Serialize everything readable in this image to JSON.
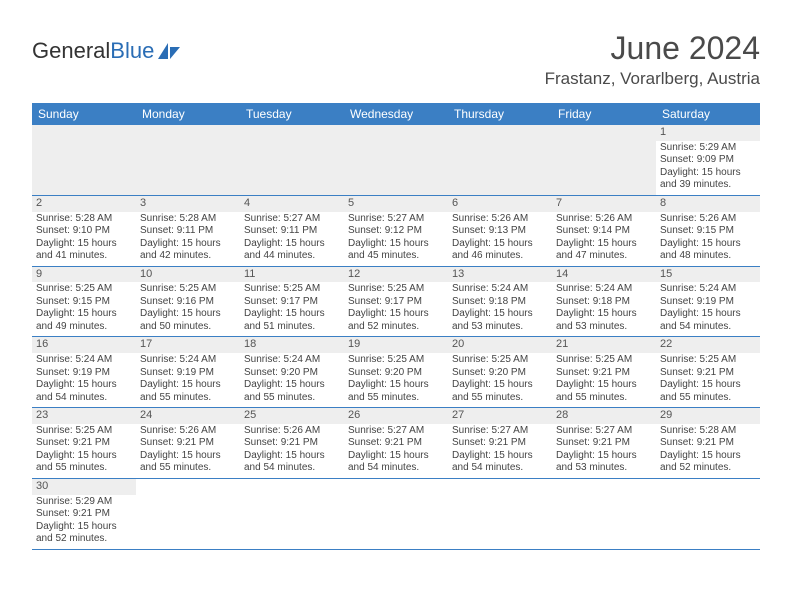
{
  "logo": {
    "word1": "General",
    "word2": "Blue"
  },
  "title": "June 2024",
  "location": "Frastanz, Vorarlberg, Austria",
  "colors": {
    "header_bg": "#3b7fc4",
    "header_text": "#ffffff",
    "border": "#3b7fc4",
    "shade": "#eeeeee",
    "text": "#444444"
  },
  "weekdays": [
    "Sunday",
    "Monday",
    "Tuesday",
    "Wednesday",
    "Thursday",
    "Friday",
    "Saturday"
  ],
  "days": {
    "1": {
      "sunrise": "Sunrise: 5:29 AM",
      "sunset": "Sunset: 9:09 PM",
      "day1": "Daylight: 15 hours",
      "day2": "and 39 minutes."
    },
    "2": {
      "sunrise": "Sunrise: 5:28 AM",
      "sunset": "Sunset: 9:10 PM",
      "day1": "Daylight: 15 hours",
      "day2": "and 41 minutes."
    },
    "3": {
      "sunrise": "Sunrise: 5:28 AM",
      "sunset": "Sunset: 9:11 PM",
      "day1": "Daylight: 15 hours",
      "day2": "and 42 minutes."
    },
    "4": {
      "sunrise": "Sunrise: 5:27 AM",
      "sunset": "Sunset: 9:11 PM",
      "day1": "Daylight: 15 hours",
      "day2": "and 44 minutes."
    },
    "5": {
      "sunrise": "Sunrise: 5:27 AM",
      "sunset": "Sunset: 9:12 PM",
      "day1": "Daylight: 15 hours",
      "day2": "and 45 minutes."
    },
    "6": {
      "sunrise": "Sunrise: 5:26 AM",
      "sunset": "Sunset: 9:13 PM",
      "day1": "Daylight: 15 hours",
      "day2": "and 46 minutes."
    },
    "7": {
      "sunrise": "Sunrise: 5:26 AM",
      "sunset": "Sunset: 9:14 PM",
      "day1": "Daylight: 15 hours",
      "day2": "and 47 minutes."
    },
    "8": {
      "sunrise": "Sunrise: 5:26 AM",
      "sunset": "Sunset: 9:15 PM",
      "day1": "Daylight: 15 hours",
      "day2": "and 48 minutes."
    },
    "9": {
      "sunrise": "Sunrise: 5:25 AM",
      "sunset": "Sunset: 9:15 PM",
      "day1": "Daylight: 15 hours",
      "day2": "and 49 minutes."
    },
    "10": {
      "sunrise": "Sunrise: 5:25 AM",
      "sunset": "Sunset: 9:16 PM",
      "day1": "Daylight: 15 hours",
      "day2": "and 50 minutes."
    },
    "11": {
      "sunrise": "Sunrise: 5:25 AM",
      "sunset": "Sunset: 9:17 PM",
      "day1": "Daylight: 15 hours",
      "day2": "and 51 minutes."
    },
    "12": {
      "sunrise": "Sunrise: 5:25 AM",
      "sunset": "Sunset: 9:17 PM",
      "day1": "Daylight: 15 hours",
      "day2": "and 52 minutes."
    },
    "13": {
      "sunrise": "Sunrise: 5:24 AM",
      "sunset": "Sunset: 9:18 PM",
      "day1": "Daylight: 15 hours",
      "day2": "and 53 minutes."
    },
    "14": {
      "sunrise": "Sunrise: 5:24 AM",
      "sunset": "Sunset: 9:18 PM",
      "day1": "Daylight: 15 hours",
      "day2": "and 53 minutes."
    },
    "15": {
      "sunrise": "Sunrise: 5:24 AM",
      "sunset": "Sunset: 9:19 PM",
      "day1": "Daylight: 15 hours",
      "day2": "and 54 minutes."
    },
    "16": {
      "sunrise": "Sunrise: 5:24 AM",
      "sunset": "Sunset: 9:19 PM",
      "day1": "Daylight: 15 hours",
      "day2": "and 54 minutes."
    },
    "17": {
      "sunrise": "Sunrise: 5:24 AM",
      "sunset": "Sunset: 9:19 PM",
      "day1": "Daylight: 15 hours",
      "day2": "and 55 minutes."
    },
    "18": {
      "sunrise": "Sunrise: 5:24 AM",
      "sunset": "Sunset: 9:20 PM",
      "day1": "Daylight: 15 hours",
      "day2": "and 55 minutes."
    },
    "19": {
      "sunrise": "Sunrise: 5:25 AM",
      "sunset": "Sunset: 9:20 PM",
      "day1": "Daylight: 15 hours",
      "day2": "and 55 minutes."
    },
    "20": {
      "sunrise": "Sunrise: 5:25 AM",
      "sunset": "Sunset: 9:20 PM",
      "day1": "Daylight: 15 hours",
      "day2": "and 55 minutes."
    },
    "21": {
      "sunrise": "Sunrise: 5:25 AM",
      "sunset": "Sunset: 9:21 PM",
      "day1": "Daylight: 15 hours",
      "day2": "and 55 minutes."
    },
    "22": {
      "sunrise": "Sunrise: 5:25 AM",
      "sunset": "Sunset: 9:21 PM",
      "day1": "Daylight: 15 hours",
      "day2": "and 55 minutes."
    },
    "23": {
      "sunrise": "Sunrise: 5:25 AM",
      "sunset": "Sunset: 9:21 PM",
      "day1": "Daylight: 15 hours",
      "day2": "and 55 minutes."
    },
    "24": {
      "sunrise": "Sunrise: 5:26 AM",
      "sunset": "Sunset: 9:21 PM",
      "day1": "Daylight: 15 hours",
      "day2": "and 55 minutes."
    },
    "25": {
      "sunrise": "Sunrise: 5:26 AM",
      "sunset": "Sunset: 9:21 PM",
      "day1": "Daylight: 15 hours",
      "day2": "and 54 minutes."
    },
    "26": {
      "sunrise": "Sunrise: 5:27 AM",
      "sunset": "Sunset: 9:21 PM",
      "day1": "Daylight: 15 hours",
      "day2": "and 54 minutes."
    },
    "27": {
      "sunrise": "Sunrise: 5:27 AM",
      "sunset": "Sunset: 9:21 PM",
      "day1": "Daylight: 15 hours",
      "day2": "and 54 minutes."
    },
    "28": {
      "sunrise": "Sunrise: 5:27 AM",
      "sunset": "Sunset: 9:21 PM",
      "day1": "Daylight: 15 hours",
      "day2": "and 53 minutes."
    },
    "29": {
      "sunrise": "Sunrise: 5:28 AM",
      "sunset": "Sunset: 9:21 PM",
      "day1": "Daylight: 15 hours",
      "day2": "and 52 minutes."
    },
    "30": {
      "sunrise": "Sunrise: 5:29 AM",
      "sunset": "Sunset: 9:21 PM",
      "day1": "Daylight: 15 hours",
      "day2": "and 52 minutes."
    }
  },
  "grid": [
    [
      null,
      null,
      null,
      null,
      null,
      null,
      "1"
    ],
    [
      "2",
      "3",
      "4",
      "5",
      "6",
      "7",
      "8"
    ],
    [
      "9",
      "10",
      "11",
      "12",
      "13",
      "14",
      "15"
    ],
    [
      "16",
      "17",
      "18",
      "19",
      "20",
      "21",
      "22"
    ],
    [
      "23",
      "24",
      "25",
      "26",
      "27",
      "28",
      "29"
    ],
    [
      "30",
      null,
      null,
      null,
      null,
      null,
      null
    ]
  ]
}
